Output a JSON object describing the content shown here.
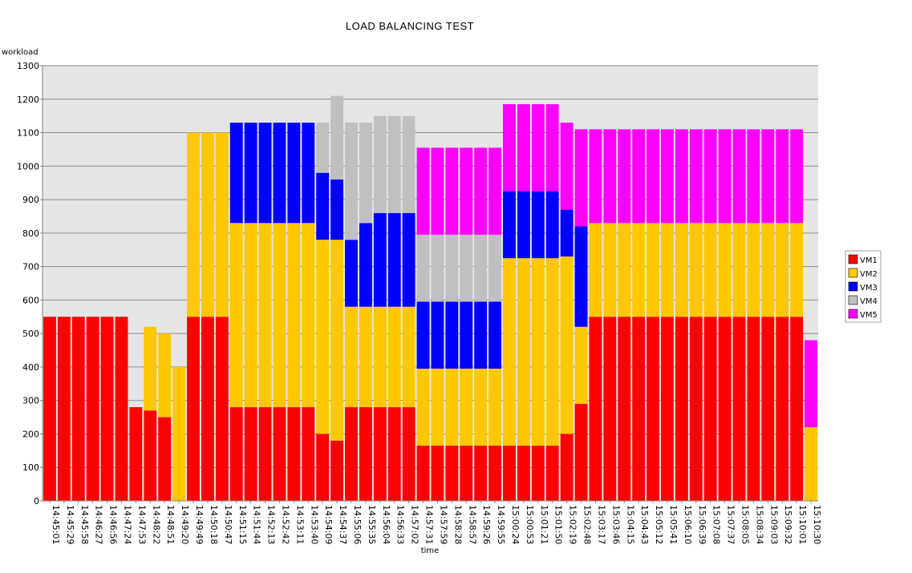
{
  "chart_data": {
    "type": "bar",
    "stacked": true,
    "title": "LOAD BALANCING TEST",
    "xlabel": "time",
    "ylabel": "workload",
    "ylim": [
      0,
      1300
    ],
    "yticks": [
      0,
      100,
      200,
      300,
      400,
      500,
      600,
      700,
      800,
      900,
      1000,
      1100,
      1200,
      1300
    ],
    "grid": true,
    "legend_position": "right",
    "colors": {
      "VM1": "#ff0000",
      "VM2": "#ffc800",
      "VM3": "#0000ff",
      "VM4": "#c0c0c0",
      "VM5": "#ff00ff",
      "plot_bg": "#e5e5e5"
    },
    "categories": [
      "14:45:01",
      "14:45:29",
      "14:45:58",
      "14:46:27",
      "14:46:56",
      "14:47:24",
      "14:47:53",
      "14:48:22",
      "14:48:51",
      "14:49:20",
      "14:49:49",
      "14:50:18",
      "14:50:47",
      "14:51:15",
      "14:51:44",
      "14:52:13",
      "14:52:42",
      "14:53:11",
      "14:53:40",
      "14:54:09",
      "14:54:37",
      "14:55:06",
      "14:55:35",
      "14:56:04",
      "14:56:33",
      "14:57:02",
      "14:57:31",
      "14:57:59",
      "14:58:28",
      "14:58:57",
      "14:59:26",
      "14:59:55",
      "15:00:24",
      "15:00:53",
      "15:01:21",
      "15:01:50",
      "15:02:19",
      "15:02:48",
      "15:03:17",
      "15:03:46",
      "15:04:15",
      "15:04:43",
      "15:05:12",
      "15:05:41",
      "15:06:10",
      "15:06:39",
      "15:07:08",
      "15:07:37",
      "15:08:05",
      "15:08:34",
      "15:09:03",
      "15:09:32",
      "15:10:01",
      "15:10:30"
    ],
    "series": [
      {
        "name": "VM1",
        "values": [
          550,
          550,
          550,
          550,
          550,
          550,
          280,
          270,
          250,
          0,
          550,
          550,
          550,
          280,
          280,
          280,
          280,
          280,
          280,
          200,
          180,
          280,
          280,
          280,
          280,
          280,
          165,
          165,
          165,
          165,
          165,
          165,
          165,
          165,
          165,
          165,
          200,
          290,
          550,
          550,
          550,
          550,
          550,
          550,
          550,
          550,
          550,
          550,
          550,
          550,
          550,
          550,
          550,
          0
        ]
      },
      {
        "name": "VM2",
        "values": [
          0,
          0,
          0,
          0,
          0,
          0,
          0,
          250,
          250,
          400,
          550,
          550,
          550,
          550,
          550,
          550,
          550,
          550,
          550,
          580,
          600,
          300,
          300,
          300,
          300,
          300,
          230,
          230,
          230,
          230,
          230,
          230,
          560,
          560,
          560,
          560,
          530,
          230,
          280,
          280,
          280,
          280,
          280,
          280,
          280,
          280,
          280,
          280,
          280,
          280,
          280,
          280,
          280,
          220
        ]
      },
      {
        "name": "VM3",
        "values": [
          0,
          0,
          0,
          0,
          0,
          0,
          0,
          0,
          0,
          0,
          0,
          0,
          0,
          300,
          300,
          300,
          300,
          300,
          300,
          200,
          180,
          200,
          250,
          280,
          280,
          280,
          200,
          200,
          200,
          200,
          200,
          200,
          200,
          200,
          200,
          200,
          140,
          300,
          0,
          0,
          0,
          0,
          0,
          0,
          0,
          0,
          0,
          0,
          0,
          0,
          0,
          0,
          0,
          0
        ]
      },
      {
        "name": "VM4",
        "values": [
          0,
          0,
          0,
          0,
          0,
          0,
          0,
          0,
          0,
          0,
          0,
          0,
          0,
          0,
          0,
          0,
          0,
          0,
          0,
          150,
          250,
          350,
          300,
          290,
          290,
          290,
          200,
          200,
          200,
          200,
          200,
          200,
          0,
          0,
          0,
          0,
          0,
          0,
          0,
          0,
          0,
          0,
          0,
          0,
          0,
          0,
          0,
          0,
          0,
          0,
          0,
          0,
          0,
          0
        ]
      },
      {
        "name": "VM5",
        "values": [
          0,
          0,
          0,
          0,
          0,
          0,
          0,
          0,
          0,
          0,
          0,
          0,
          0,
          0,
          0,
          0,
          0,
          0,
          0,
          0,
          0,
          0,
          0,
          0,
          0,
          0,
          260,
          260,
          260,
          260,
          260,
          260,
          260,
          260,
          260,
          260,
          260,
          290,
          280,
          280,
          280,
          280,
          280,
          280,
          280,
          280,
          280,
          280,
          280,
          280,
          280,
          280,
          280,
          260
        ]
      }
    ]
  }
}
